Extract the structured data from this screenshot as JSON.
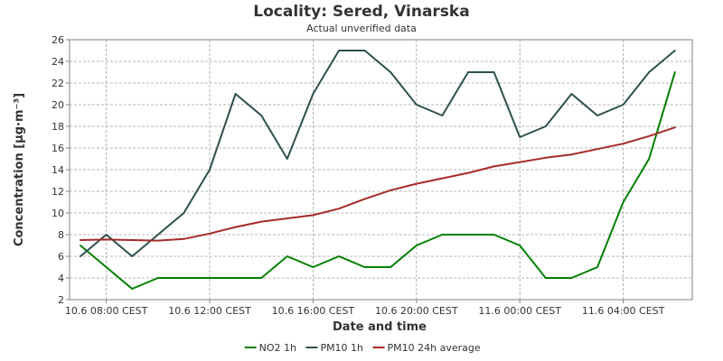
{
  "chart_data": {
    "type": "line",
    "title": "Locality: Sered, Vinarska",
    "subtitle": "Actual unverified data",
    "xlabel": "Date and time",
    "ylabel": "Concentration [µg·m⁻³]",
    "ylim": [
      2,
      26
    ],
    "yticks": [
      2,
      4,
      6,
      8,
      10,
      12,
      14,
      16,
      18,
      20,
      22,
      24,
      26
    ],
    "grid": true,
    "legend_position": "bottom",
    "x": [
      "10.6 07:00",
      "10.6 08:00",
      "10.6 09:00",
      "10.6 10:00",
      "10.6 11:00",
      "10.6 12:00",
      "10.6 13:00",
      "10.6 14:00",
      "10.6 15:00",
      "10.6 16:00",
      "10.6 17:00",
      "10.6 18:00",
      "10.6 19:00",
      "10.6 20:00",
      "10.6 21:00",
      "10.6 22:00",
      "10.6 23:00",
      "11.6 00:00",
      "11.6 01:00",
      "11.6 02:00",
      "11.6 03:00",
      "11.6 04:00",
      "11.6 05:00",
      "11.6 06:00"
    ],
    "xticks": [
      {
        "at": 1,
        "label": "10.6 08:00 CEST"
      },
      {
        "at": 5,
        "label": "10.6 12:00 CEST"
      },
      {
        "at": 9,
        "label": "10.6 16:00 CEST"
      },
      {
        "at": 13,
        "label": "10.6 20:00 CEST"
      },
      {
        "at": 17,
        "label": "11.6 00:00 CEST"
      },
      {
        "at": 21,
        "label": "11.6 04:00 CEST"
      }
    ],
    "series": [
      {
        "name": "NO2 1h",
        "color": "#008000",
        "values": [
          7,
          5,
          3,
          4,
          4,
          4,
          4,
          4,
          6,
          5,
          6,
          5,
          5,
          7,
          8,
          8,
          8,
          7,
          4,
          4,
          5,
          11,
          15,
          23
        ]
      },
      {
        "name": "PM10 1h",
        "color": "#2f4f4f",
        "values": [
          6,
          8,
          6,
          8,
          10,
          14,
          21,
          19,
          15,
          21,
          25,
          25,
          23,
          20,
          19,
          23,
          23,
          17,
          18,
          21,
          19,
          20,
          23,
          25
        ]
      },
      {
        "name": "PM10 24h average",
        "color": "#a52a2a",
        "values": [
          7.5,
          7.55,
          7.5,
          7.45,
          7.6,
          8.1,
          8.7,
          9.2,
          9.5,
          9.8,
          10.4,
          11.3,
          12.1,
          12.7,
          13.2,
          13.7,
          14.3,
          14.7,
          15.1,
          15.4,
          15.9,
          16.4,
          17.1,
          17.9
        ]
      }
    ]
  }
}
